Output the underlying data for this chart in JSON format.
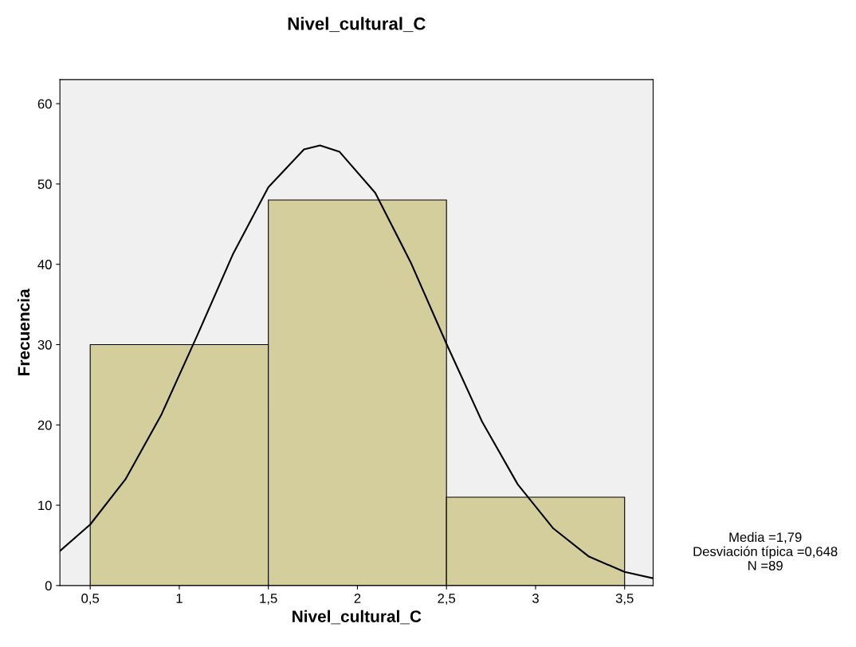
{
  "chart_data": {
    "type": "histogram",
    "title": "Nivel_cultural_C",
    "xlabel": "Nivel_cultural_C",
    "ylabel": "Frecuencia",
    "bins": [
      0.5,
      1.5,
      2.5,
      3.5
    ],
    "values": [
      30,
      48,
      11
    ],
    "color": "#d3ce9c",
    "series": [
      {
        "type": "line",
        "color": "#000000",
        "x": [
          0.33,
          0.5,
          0.7,
          0.9,
          1.1,
          1.3,
          1.5,
          1.7,
          1.79,
          1.9,
          2.1,
          2.3,
          2.5,
          2.7,
          2.9,
          3.1,
          3.3,
          3.5,
          3.66
        ],
        "values": [
          4.3,
          7.6,
          13.3,
          21.3,
          31.1,
          41.2,
          49.6,
          54.3,
          54.8,
          54.0,
          48.9,
          40.2,
          30.1,
          20.4,
          12.6,
          7.1,
          3.6,
          1.7,
          0.9
        ]
      }
    ],
    "xlim": [
      0.33,
      3.66
    ],
    "ylim": [
      0,
      63
    ],
    "xticks": [
      {
        "value": 0.5,
        "label": "0,5"
      },
      1,
      {
        "value": 1.5,
        "label": "1,5"
      },
      2,
      {
        "value": 2.5,
        "label": "2,5"
      },
      3,
      {
        "value": 3.5,
        "label": "3,5"
      }
    ],
    "yticks": [
      0,
      10,
      20,
      30,
      40,
      50,
      60
    ],
    "annotations": [
      "Media =1,79",
      "Desviación típica =0,648",
      "N =89"
    ],
    "grid": false,
    "legend": false
  }
}
